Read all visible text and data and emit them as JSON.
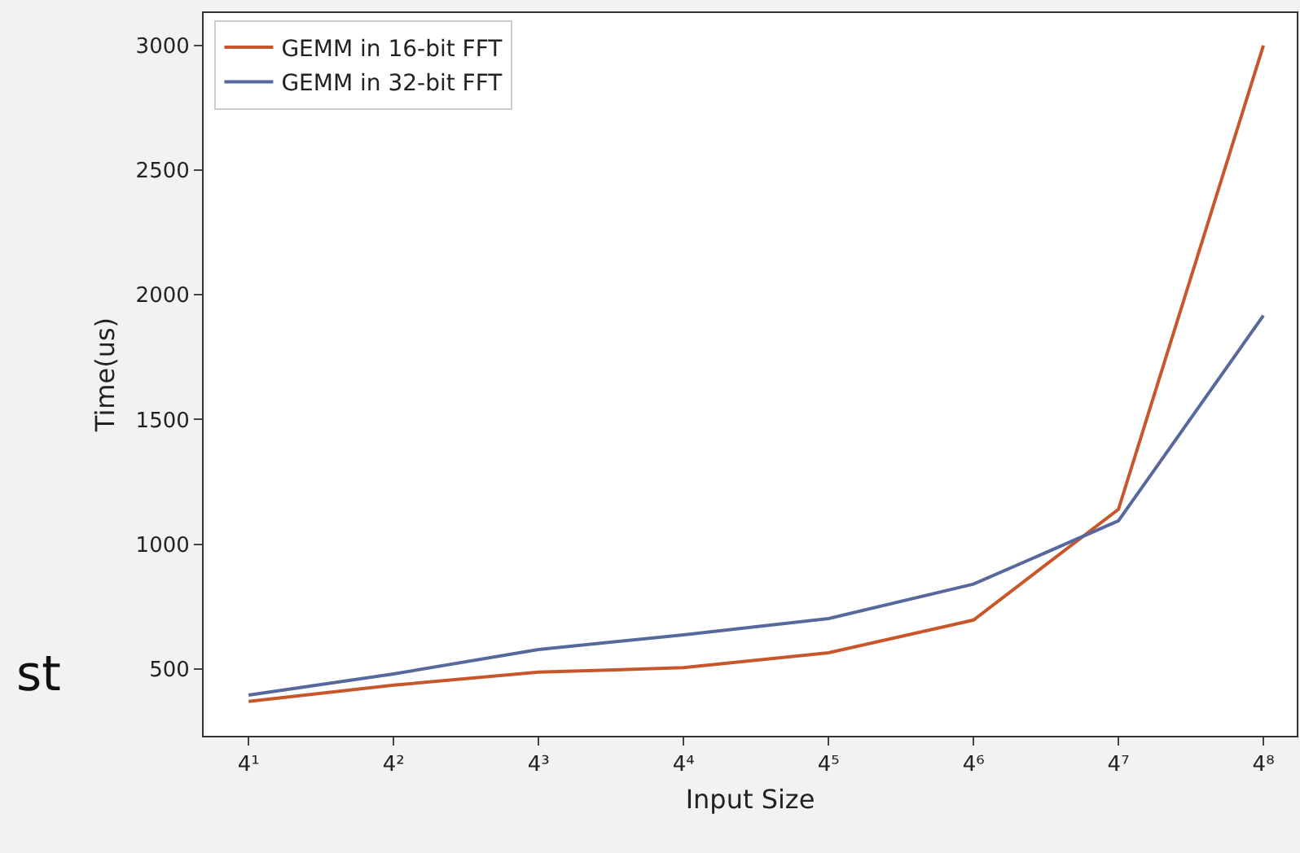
{
  "chart_data": {
    "type": "line",
    "xlabel": "Input Size",
    "ylabel": "Time(us)",
    "categories": [
      "4¹",
      "4²",
      "4³",
      "4⁴",
      "4⁵",
      "4⁶",
      "4⁷",
      "4⁸"
    ],
    "series": [
      {
        "name": "GEMM in 16-bit FFT",
        "color": "#c8562a",
        "values": [
          370,
          435,
          487,
          505,
          565,
          696,
          1140,
          3000
        ]
      },
      {
        "name": "GEMM in 32-bit FFT",
        "color": "#56689c",
        "values": [
          395,
          480,
          578,
          637,
          702,
          840,
          1094,
          1917
        ]
      }
    ],
    "ylim": [
      232,
      3130
    ],
    "yticks": [
      500,
      1000,
      1500,
      2000,
      2500,
      3000
    ],
    "grid": false,
    "legend": "top left",
    "marker": "none",
    "line_style": "solid",
    "annotations": [
      "st"
    ]
  }
}
